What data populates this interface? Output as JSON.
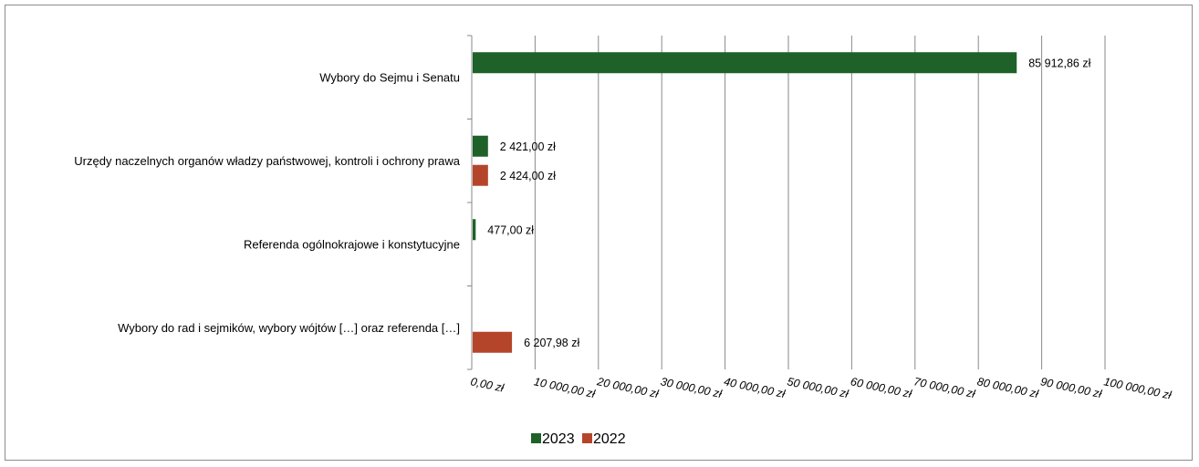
{
  "chart_data": {
    "type": "bar",
    "orientation": "horizontal",
    "categories": [
      "Wybory do Sejmu i Senatu",
      "Urzędy naczelnych organów władzy państwowej, kontroli i ochrony prawa",
      "Referenda ogólnokrajowe i konstytucyjne",
      "Wybory do rad i sejmików, wybory wójtów […] oraz referenda […]"
    ],
    "series": [
      {
        "name": "2023",
        "color": "#1e6129",
        "values": [
          85912.86,
          2421.0,
          477.0,
          null
        ],
        "labels": [
          "85 912,86 zł",
          "2 421,00 zł",
          "477,00 zł",
          ""
        ]
      },
      {
        "name": "2022",
        "color": "#b5452a",
        "values": [
          null,
          2424.0,
          null,
          6207.98
        ],
        "labels": [
          "",
          "2 424,00 zł",
          "",
          "6 207,98 zł"
        ]
      }
    ],
    "xlim": [
      0,
      100000
    ],
    "xticks": [
      0,
      10000,
      20000,
      30000,
      40000,
      50000,
      60000,
      70000,
      80000,
      90000,
      100000
    ],
    "xtick_labels": [
      "0,00 zł",
      "10 000,00 zł",
      "20 000,00 zł",
      "30 000,00 zł",
      "40 000,00 zł",
      "50 000,00 zł",
      "60 000,00 zł",
      "70 000,00 zł",
      "80 000,00 zł",
      "90 000,00 zł",
      "100 000,00 zł"
    ],
    "grid": true,
    "legend_position": "bottom-center"
  }
}
